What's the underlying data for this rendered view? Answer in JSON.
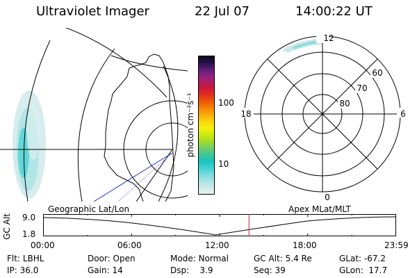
{
  "header": {
    "title": "Ultraviolet Imager",
    "date": "22 Jul 07",
    "time": "14:00:22 UT"
  },
  "colorbar": {
    "unit_label": "photon cm⁻²s⁻¹",
    "tick_labels": [
      "100",
      "10"
    ],
    "tick_values": [
      100,
      10
    ],
    "colors": [
      "#e8f2f2",
      "#cfe9ea",
      "#a7e3e3",
      "#7ad9d9",
      "#3fd1d1",
      "#19c5c2",
      "#3fc49a",
      "#6fd06c",
      "#9fdc2c",
      "#ccea14",
      "#f4f20a",
      "#f8d60a",
      "#f8b006",
      "#f58a04",
      "#ee5e03",
      "#e2351a",
      "#d11a33",
      "#b51c5c",
      "#8e2180",
      "#5b1d78",
      "#2a0f4a",
      "#0a0820"
    ]
  },
  "polar_plot": {
    "mlat_labels": [
      "60",
      "70",
      "80"
    ],
    "mlt_labels": {
      "top": "12",
      "bottom": "0",
      "left": "18",
      "right": "6"
    }
  },
  "timeline": {
    "ylabel": "GC Alt",
    "y_ticks": [
      "9.0",
      "1.8"
    ],
    "left_label": "Geographic Lat/Lon",
    "right_label": "Apex MLat/MLT",
    "x_ticks": [
      "00:00",
      "06:00",
      "12:00",
      "18:00",
      "23:59"
    ],
    "current_time_hours": 14.0,
    "marker_color": "#d02020"
  },
  "footer": {
    "filter": {
      "label": "Flt:",
      "value": "LBHL"
    },
    "ip": {
      "label": "IP:",
      "value": "36.0"
    },
    "door": {
      "label": "Door:",
      "value": "Open"
    },
    "gain": {
      "label": "Gain:",
      "value": "14"
    },
    "mode": {
      "label": "Mode:",
      "value": "Normal"
    },
    "dsp": {
      "label": "Dsp:",
      "value": "3.9"
    },
    "gc_alt": {
      "label": "GC Alt:",
      "value": "5.4 Re"
    },
    "seq": {
      "label": "Seq:",
      "value": "39"
    },
    "glat": {
      "label": "GLat:",
      "value": "-67.2"
    },
    "glon": {
      "label": "GLon:",
      "value": "17.7"
    }
  }
}
